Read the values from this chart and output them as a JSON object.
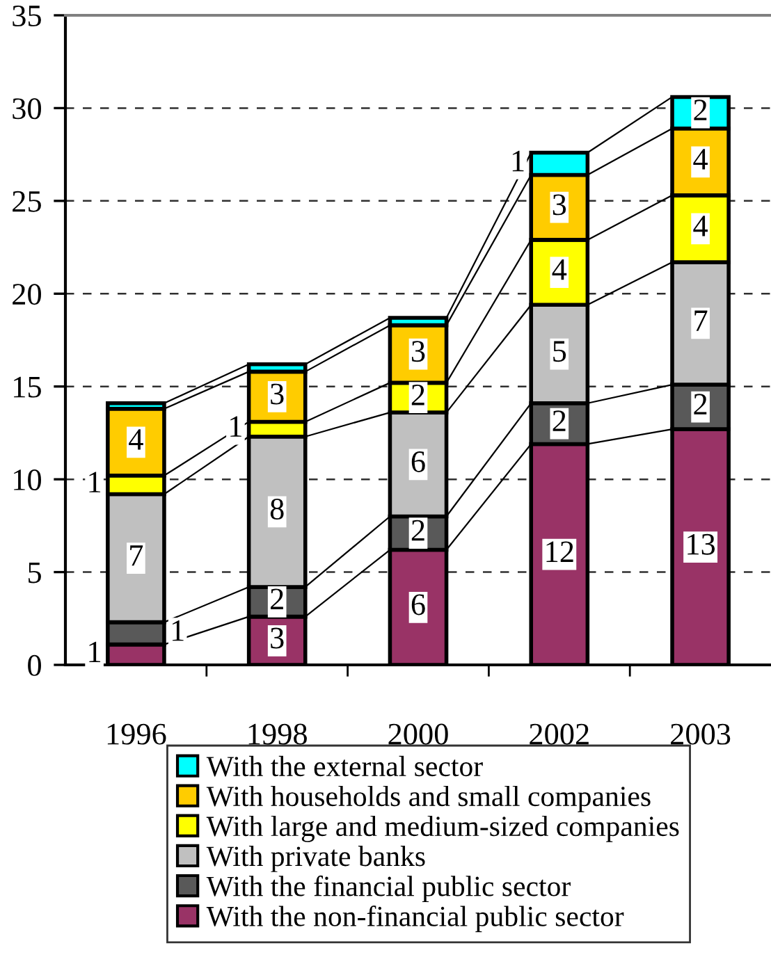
{
  "chart_data": {
    "type": "bar",
    "stacked": true,
    "categories": [
      "1996",
      "1998",
      "2000",
      "2002",
      "2003"
    ],
    "series": [
      {
        "name": "With the non-financial public sector",
        "color": "#993366",
        "values": [
          1.1,
          2.6,
          6.2,
          11.9,
          12.7
        ],
        "value_labels": [
          "1",
          "3",
          "6",
          "12",
          "13"
        ]
      },
      {
        "name": "With the financial public sector",
        "color": "#595959",
        "values": [
          1.2,
          1.6,
          1.8,
          2.2,
          2.4
        ],
        "value_labels": [
          "1",
          "2",
          "2",
          "2",
          "2"
        ]
      },
      {
        "name": "With private banks",
        "color": "#c0c0c0",
        "values": [
          6.9,
          8.1,
          5.6,
          5.3,
          6.6
        ],
        "value_labels": [
          "7",
          "8",
          "6",
          "5",
          "7"
        ]
      },
      {
        "name": "With large and medium-sized companies",
        "color": "#ffff00",
        "values": [
          1.0,
          0.8,
          1.6,
          3.5,
          3.6
        ],
        "value_labels": [
          "1",
          "1",
          "2",
          "4",
          "4"
        ]
      },
      {
        "name": "With households and small companies",
        "color": "#ffcc00",
        "values": [
          3.6,
          2.7,
          3.1,
          3.5,
          3.6
        ],
        "value_labels": [
          "4",
          "3",
          "3",
          "3",
          "4"
        ]
      },
      {
        "name": "With the external sector",
        "color": "#00ffff",
        "values": [
          0.3,
          0.4,
          0.4,
          1.2,
          1.7
        ],
        "value_labels": [
          null,
          null,
          null,
          "1",
          "2"
        ]
      }
    ],
    "ylim": [
      0,
      35
    ],
    "yticks": [
      0,
      5,
      10,
      15,
      20,
      25,
      30,
      35
    ],
    "grid": "y",
    "legend": "bottom"
  }
}
